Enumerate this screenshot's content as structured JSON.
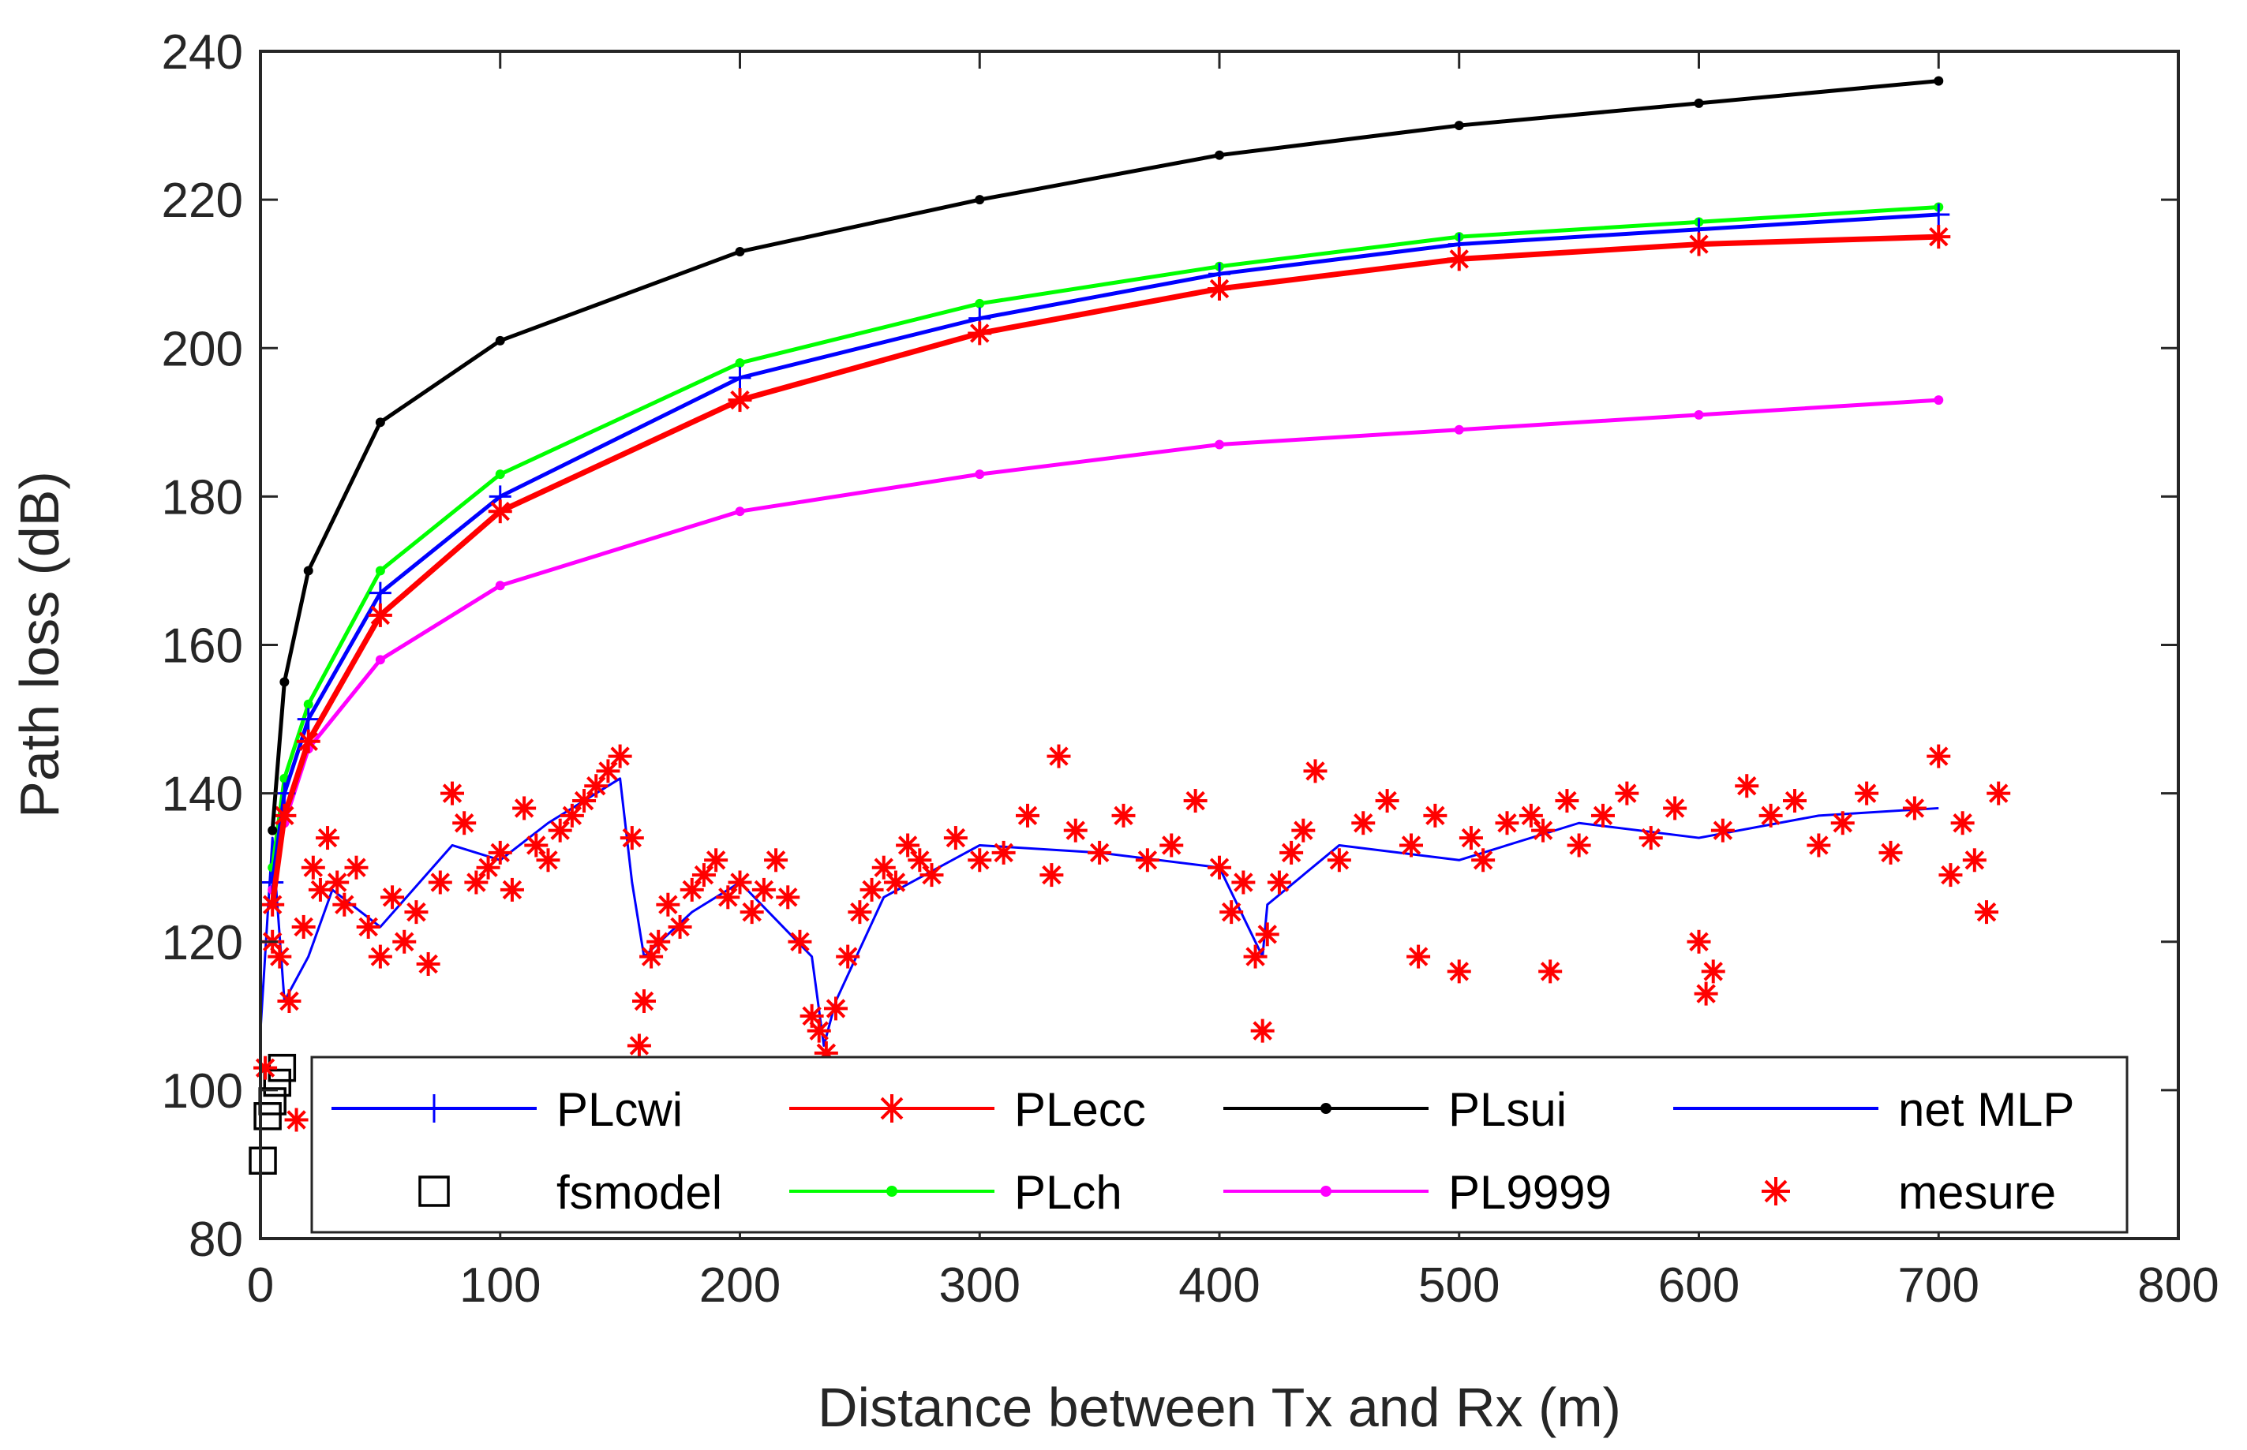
{
  "chart_data": {
    "type": "line",
    "title": "",
    "xlabel": "Distance between Tx and Rx (m)",
    "ylabel": "Path loss (dB)",
    "xlim": [
      0,
      800
    ],
    "ylim": [
      80,
      240
    ],
    "xticks": [
      0,
      100,
      200,
      300,
      400,
      500,
      600,
      700,
      800
    ],
    "yticks": [
      80,
      100,
      120,
      140,
      160,
      180,
      200,
      220,
      240
    ],
    "grid": false,
    "legend": {
      "position": "bottom",
      "columns": 4
    },
    "series": [
      {
        "name": "PLcwi",
        "color": "#0000ff",
        "marker": "plus",
        "x": [
          5,
          10,
          20,
          50,
          100,
          200,
          300,
          400,
          500,
          600,
          700
        ],
        "y": [
          128,
          140,
          150,
          167,
          180,
          196,
          204,
          210,
          214,
          216,
          218
        ]
      },
      {
        "name": "PLecc",
        "color": "#ff0000",
        "marker": "asterisk",
        "x": [
          5,
          10,
          20,
          50,
          100,
          200,
          300,
          400,
          500,
          600,
          700
        ],
        "y": [
          125,
          137,
          147,
          164,
          178,
          193,
          202,
          208,
          212,
          214,
          215
        ]
      },
      {
        "name": "PLsui",
        "color": "#000000",
        "marker": "dot",
        "x": [
          5,
          10,
          20,
          50,
          100,
          200,
          300,
          400,
          500,
          600,
          700
        ],
        "y": [
          135,
          155,
          170,
          190,
          201,
          213,
          220,
          226,
          230,
          233,
          236
        ]
      },
      {
        "name": "net MLP",
        "color": "#0000ff",
        "marker": "none",
        "x": [
          0,
          5,
          10,
          20,
          30,
          50,
          80,
          100,
          120,
          150,
          155,
          160,
          180,
          200,
          230,
          235,
          240,
          260,
          300,
          350,
          400,
          418,
          420,
          450,
          500,
          550,
          600,
          650,
          700
        ],
        "y": [
          108,
          134,
          112,
          118,
          127,
          122,
          133,
          131,
          136,
          142,
          128,
          118,
          124,
          128,
          118,
          106,
          112,
          126,
          133,
          132,
          130,
          118,
          125,
          133,
          131,
          136,
          134,
          137,
          138
        ]
      },
      {
        "name": "fsmodel",
        "color": "#000000",
        "marker": "square",
        "x": [
          1,
          3,
          5,
          7,
          9
        ],
        "y": [
          90.5,
          96.5,
          98.5,
          101,
          103
        ]
      },
      {
        "name": "PLch",
        "color": "#00ff00",
        "marker": "dot",
        "x": [
          5,
          10,
          20,
          50,
          100,
          200,
          300,
          400,
          500,
          600,
          700
        ],
        "y": [
          130,
          142,
          152,
          170,
          183,
          198,
          206,
          211,
          215,
          217,
          219
        ]
      },
      {
        "name": "PL9999",
        "color": "#ff00ff",
        "marker": "dot",
        "x": [
          5,
          10,
          20,
          50,
          100,
          200,
          300,
          400,
          500,
          600,
          700
        ],
        "y": [
          127,
          136,
          146,
          158,
          168,
          178,
          183,
          187,
          189,
          191,
          193
        ]
      },
      {
        "name": "mesure",
        "color": "#ff0000",
        "marker": "asterisk",
        "x": [
          2,
          5,
          8,
          12,
          15,
          18,
          22,
          25,
          28,
          32,
          35,
          40,
          45,
          50,
          55,
          60,
          65,
          70,
          75,
          80,
          85,
          90,
          95,
          100,
          105,
          110,
          115,
          120,
          125,
          130,
          135,
          140,
          145,
          150,
          155,
          158,
          160,
          163,
          166,
          170,
          175,
          180,
          185,
          190,
          195,
          200,
          205,
          210,
          215,
          220,
          225,
          230,
          233,
          236,
          240,
          245,
          250,
          255,
          260,
          265,
          270,
          275,
          280,
          290,
          300,
          310,
          320,
          330,
          333,
          340,
          350,
          360,
          370,
          380,
          390,
          400,
          405,
          410,
          415,
          418,
          420,
          425,
          430,
          435,
          440,
          450,
          460,
          470,
          480,
          483,
          490,
          500,
          505,
          510,
          520,
          530,
          535,
          538,
          545,
          550,
          560,
          570,
          580,
          590,
          600,
          603,
          606,
          610,
          620,
          630,
          640,
          650,
          660,
          670,
          680,
          690,
          700,
          705,
          710,
          715,
          720,
          725
        ],
        "y": [
          103,
          120,
          118,
          112,
          96,
          122,
          130,
          127,
          134,
          128,
          125,
          130,
          122,
          118,
          126,
          120,
          124,
          117,
          128,
          140,
          136,
          128,
          130,
          132,
          127,
          138,
          133,
          131,
          135,
          137,
          139,
          141,
          143,
          145,
          134,
          106,
          112,
          118,
          120,
          125,
          122,
          127,
          129,
          131,
          126,
          128,
          124,
          127,
          131,
          126,
          120,
          110,
          108,
          105,
          111,
          118,
          124,
          127,
          130,
          128,
          133,
          131,
          129,
          134,
          131,
          132,
          137,
          129,
          145,
          135,
          132,
          137,
          131,
          133,
          139,
          130,
          124,
          128,
          118,
          108,
          121,
          128,
          132,
          135,
          143,
          131,
          136,
          139,
          133,
          118,
          137,
          116,
          134,
          131,
          136,
          137,
          135,
          116,
          139,
          133,
          137,
          140,
          134,
          138,
          120,
          113,
          116,
          135,
          141,
          137,
          139,
          133,
          136,
          140,
          132,
          138,
          145,
          129,
          136,
          131,
          124,
          140
        ]
      }
    ]
  }
}
